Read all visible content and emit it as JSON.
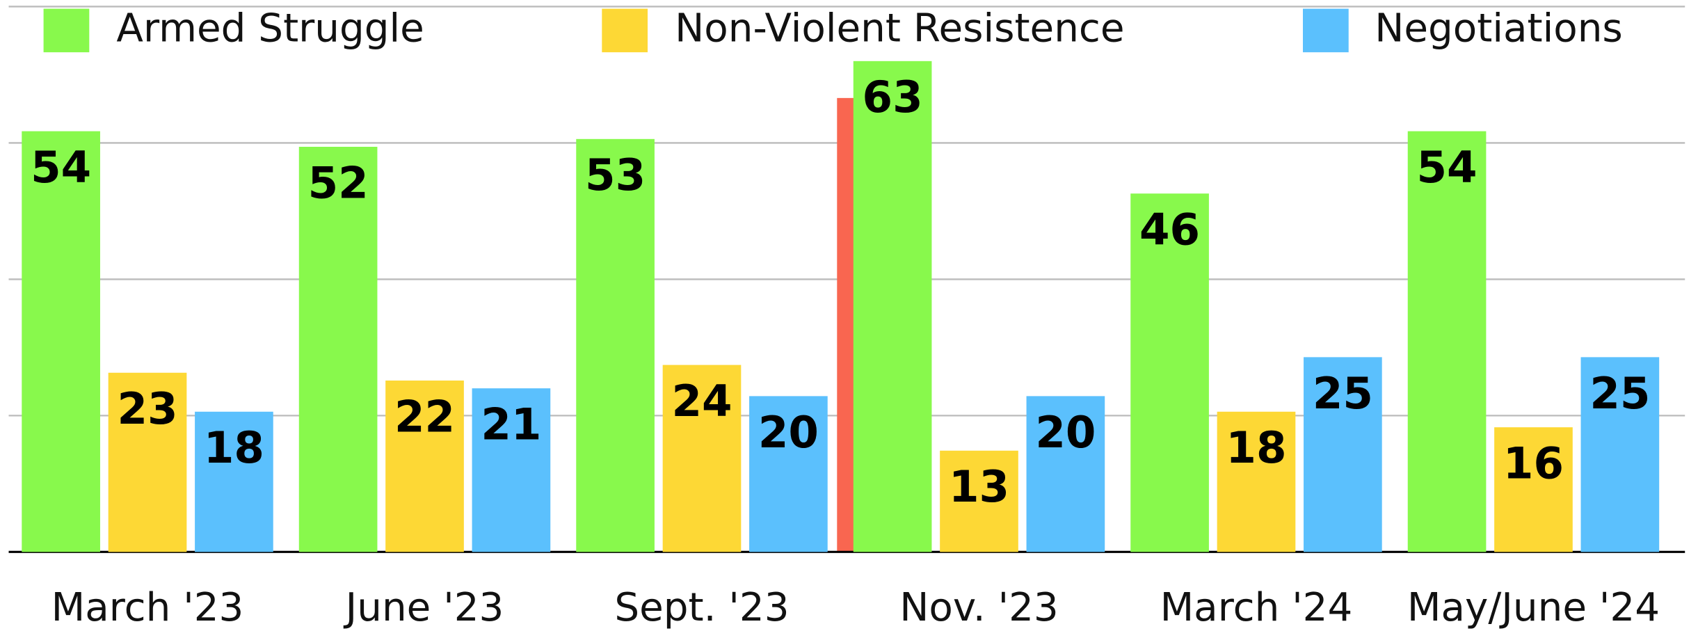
{
  "chart_data": {
    "type": "bar",
    "categories": [
      "March '23",
      "June '23",
      "Sept. '23",
      "Nov. '23",
      "March '24",
      "May/June '24"
    ],
    "series": [
      {
        "name": "Armed Struggle",
        "color": "#88f94c",
        "values": [
          54,
          52,
          53,
          63,
          46,
          54
        ]
      },
      {
        "name": "Non-Violent Resistence",
        "color": "#fdd835",
        "values": [
          23,
          22,
          24,
          13,
          18,
          16
        ]
      },
      {
        "name": "Negotiations",
        "color": "#5bc0fd",
        "values": [
          18,
          21,
          20,
          20,
          25,
          25
        ]
      }
    ],
    "ylim": [
      0,
      70
    ],
    "yticks": [
      0,
      17.5,
      35,
      52.5,
      70
    ],
    "grid": true,
    "legend": "top"
  }
}
